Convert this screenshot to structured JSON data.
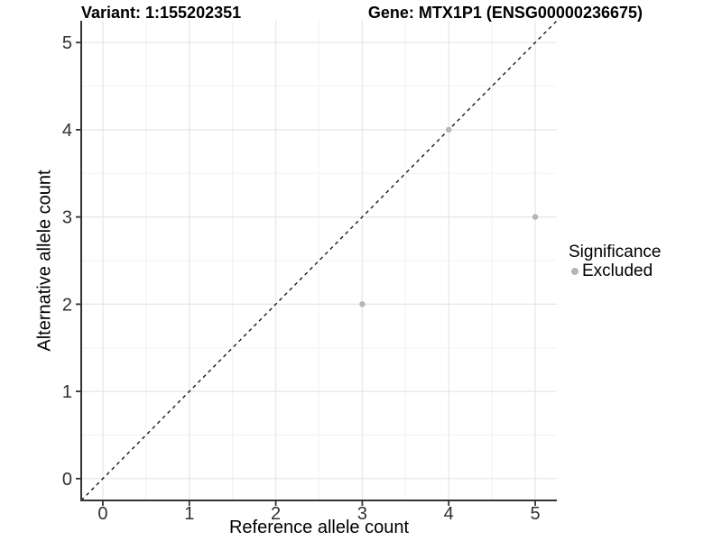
{
  "chart_data": {
    "type": "scatter",
    "title_left": "Variant: 1:155202351",
    "title_right": "Gene: MTX1P1 (ENSG00000236675)",
    "xlabel": "Reference allele count",
    "ylabel": "Alternative allele count",
    "xlim": [
      -0.25,
      5.25
    ],
    "ylim": [
      -0.25,
      5.25
    ],
    "x_ticks": [
      0,
      1,
      2,
      3,
      4,
      5
    ],
    "y_ticks": [
      0,
      1,
      2,
      3,
      4,
      5
    ],
    "grid": "major+minor",
    "reference_line": {
      "type": "identity y=x",
      "style": "dashed"
    },
    "series": [
      {
        "name": "Excluded",
        "points": [
          [
            3,
            2
          ],
          [
            4,
            4
          ],
          [
            5,
            3
          ]
        ]
      }
    ],
    "legend": {
      "title": "Significance",
      "position": "right",
      "entries": [
        {
          "label": "Excluded",
          "color": "#b5b5b5"
        }
      ]
    },
    "colors": {
      "point": "#b5b5b5",
      "grid_major": "#e6e6e6",
      "grid_minor": "#f2f2f2",
      "axis": "#333333",
      "reference_line": "#1a1a1a",
      "text": "#000000"
    }
  }
}
